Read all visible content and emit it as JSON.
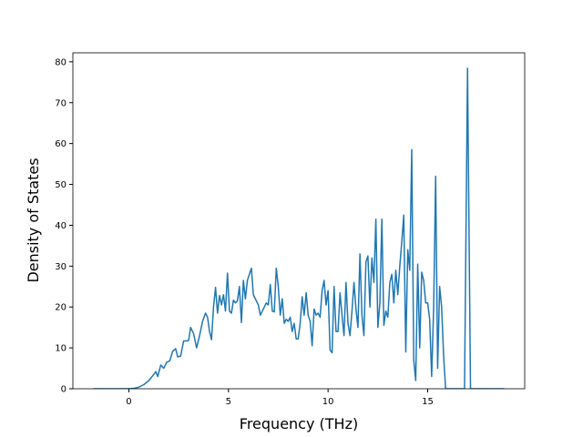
{
  "chart_data": {
    "type": "line",
    "xlabel": "Frequency (THz)",
    "ylabel": "Density of States",
    "x": [
      -1.78,
      -1.0,
      -0.5,
      0,
      0.25,
      0.5,
      0.75,
      1.0,
      1.25,
      1.35,
      1.45,
      1.6,
      1.75,
      1.9,
      2.05,
      2.2,
      2.35,
      2.45,
      2.6,
      2.75,
      2.9,
      3.0,
      3.1,
      3.25,
      3.4,
      3.55,
      3.7,
      3.85,
      3.95,
      4.05,
      4.15,
      4.25,
      4.35,
      4.45,
      4.55,
      4.65,
      4.75,
      4.85,
      4.95,
      5.05,
      5.15,
      5.25,
      5.35,
      5.45,
      5.55,
      5.65,
      5.75,
      5.85,
      5.95,
      6.05,
      6.15,
      6.25,
      6.35,
      6.5,
      6.6,
      6.75,
      6.9,
      7.0,
      7.1,
      7.2,
      7.3,
      7.4,
      7.5,
      7.6,
      7.7,
      7.8,
      7.9,
      8.0,
      8.1,
      8.2,
      8.3,
      8.4,
      8.5,
      8.6,
      8.7,
      8.8,
      8.9,
      9.0,
      9.1,
      9.2,
      9.3,
      9.4,
      9.5,
      9.6,
      9.7,
      9.8,
      9.9,
      10.0,
      10.1,
      10.2,
      10.3,
      10.4,
      10.5,
      10.6,
      10.7,
      10.8,
      10.9,
      11.0,
      11.1,
      11.2,
      11.3,
      11.4,
      11.5,
      11.6,
      11.7,
      11.8,
      11.9,
      12.0,
      12.1,
      12.2,
      12.3,
      12.4,
      12.5,
      12.6,
      12.7,
      12.8,
      12.9,
      13.0,
      13.1,
      13.2,
      13.3,
      13.4,
      13.5,
      13.6,
      13.7,
      13.8,
      13.9,
      14.0,
      14.1,
      14.2,
      14.3,
      14.4,
      14.5,
      14.6,
      14.7,
      14.8,
      14.9,
      15.0,
      15.1,
      15.2,
      15.3,
      15.4,
      15.5,
      15.6,
      15.7,
      15.8,
      15.9,
      16.5,
      16.85,
      17.0,
      17.15,
      18.0,
      18.84
    ],
    "series": [
      {
        "name": "DOS",
        "color": "#1f77b4",
        "values": [
          0,
          0,
          0,
          0,
          0.1,
          0.4,
          1.0,
          2.0,
          3.5,
          4.2,
          3.0,
          5.8,
          5.0,
          6.5,
          6.8,
          9.2,
          9.8,
          7.8,
          8.0,
          11.7,
          11.7,
          11.8,
          15.0,
          13.5,
          10.0,
          13.0,
          16.5,
          18.5,
          17.5,
          14.0,
          12.0,
          20.0,
          24.8,
          18.5,
          22.8,
          20.5,
          23.0,
          19.0,
          28.3,
          19.0,
          18.5,
          21.7,
          21.0,
          21.5,
          25.0,
          16.2,
          26.5,
          22.0,
          26.5,
          28.0,
          29.5,
          23.0,
          22.0,
          20.5,
          18.0,
          19.5,
          21.0,
          20.5,
          25.5,
          19.0,
          18.8,
          29.5,
          25.0,
          18.0,
          22.0,
          16.0,
          17.0,
          16.5,
          17.5,
          14.0,
          16.0,
          12.2,
          12.2,
          16.0,
          22.5,
          18.0,
          23.5,
          18.0,
          16.5,
          10.5,
          19.5,
          18.0,
          18.5,
          17.5,
          24.0,
          26.5,
          20.5,
          24.0,
          9.5,
          8.8,
          25.0,
          14.0,
          14.0,
          23.5,
          18.0,
          13.0,
          26.0,
          16.0,
          13.0,
          19.0,
          26.0,
          19.5,
          15.0,
          33.0,
          18.0,
          13.0,
          31.0,
          32.5,
          20.0,
          32.0,
          26.0,
          41.5,
          15.0,
          21.0,
          41.5,
          15.5,
          19.0,
          17.5,
          26.0,
          28.0,
          21.0,
          29.0,
          23.0,
          30.0,
          36.0,
          42.5,
          9.0,
          34.0,
          29.0,
          58.5,
          7.0,
          2.0,
          30.5,
          10.0,
          28.5,
          26.5,
          21.0,
          21.0,
          17.0,
          3.0,
          20.0,
          52.0,
          5.0,
          25.0,
          20.0,
          8.0,
          0,
          0,
          0,
          78.4,
          0,
          0,
          0
        ]
      }
    ],
    "xlim": [
      -2.81,
      19.87
    ],
    "ylim": [
      0,
      82.2
    ],
    "xticks": [
      0,
      5,
      10,
      15
    ],
    "yticks": [
      0,
      10,
      20,
      30,
      40,
      50,
      60,
      70,
      80
    ]
  }
}
